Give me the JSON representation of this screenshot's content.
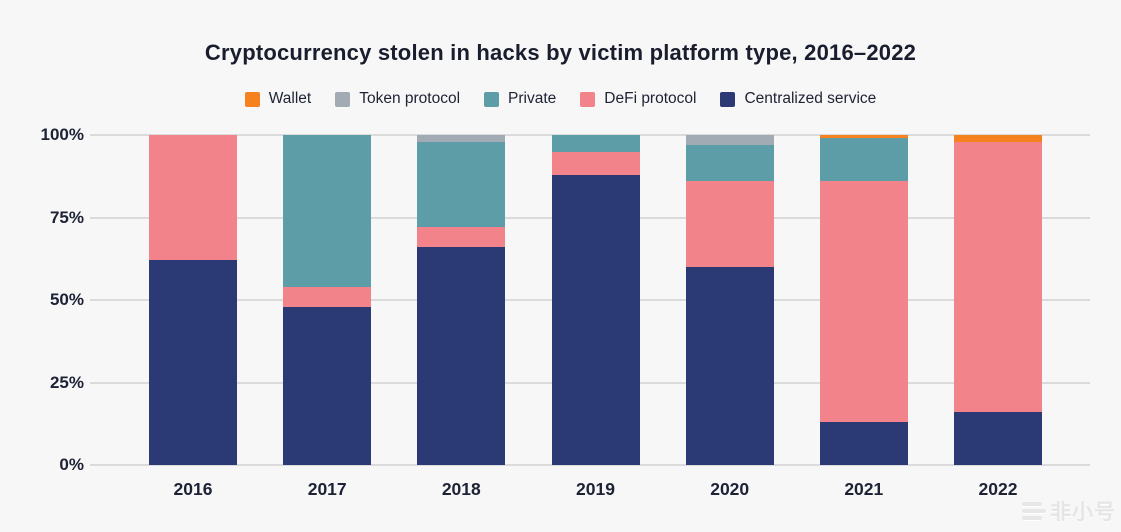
{
  "title": "Cryptocurrency stolen in hacks by victim platform type, 2016–2022",
  "watermark": {
    "text": "非小号"
  },
  "chart_data": {
    "type": "bar",
    "stacked": true,
    "unit": "percent",
    "title": "Cryptocurrency stolen in hacks by victim platform type, 2016–2022",
    "categories": [
      "2016",
      "2017",
      "2018",
      "2019",
      "2020",
      "2021",
      "2022"
    ],
    "series": [
      {
        "name": "Centralized service",
        "color": "#2B3A74",
        "values": [
          62,
          48,
          66,
          88,
          60,
          13,
          16
        ]
      },
      {
        "name": "DeFi protocol",
        "color": "#F2838B",
        "values": [
          38,
          6,
          6,
          7,
          26,
          73,
          82
        ]
      },
      {
        "name": "Private",
        "color": "#5C9DA8",
        "values": [
          0,
          46,
          26,
          5,
          11,
          13,
          0
        ]
      },
      {
        "name": "Token protocol",
        "color": "#A2AAB4",
        "values": [
          0,
          0,
          2,
          0,
          3,
          0,
          0
        ]
      },
      {
        "name": "Wallet",
        "color": "#F5821F",
        "values": [
          0,
          0,
          0,
          0,
          0,
          1,
          2
        ]
      }
    ],
    "legend_order": [
      "Wallet",
      "Token protocol",
      "Private",
      "DeFi protocol",
      "Centralized service"
    ],
    "legend_position": "top",
    "y_ticks": [
      "0%",
      "25%",
      "50%",
      "75%",
      "100%"
    ],
    "y_tick_values": [
      0,
      25,
      50,
      75,
      100
    ],
    "ylim": [
      0,
      100
    ],
    "xlabel": "",
    "ylabel": "",
    "grid": true
  }
}
